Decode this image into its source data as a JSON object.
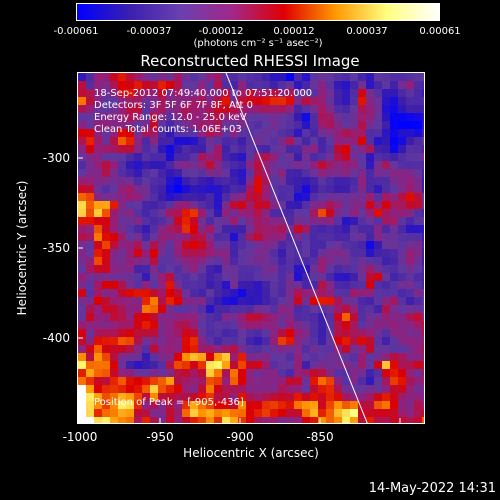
{
  "colorbar": {
    "ticks": [
      "-0.00061",
      "-0.00037",
      "-0.00012",
      "0.00012",
      "0.00037",
      "0.00061"
    ],
    "unit": "(photons cm⁻² s⁻¹ asec⁻²)",
    "colors": [
      "#0000ff",
      "#3a1fb0",
      "#6a40b0",
      "#a2288a",
      "#e00000",
      "#ff9900",
      "#ffff80",
      "#ffffff"
    ]
  },
  "title": "Reconstructed RHESSI Image",
  "annotation": {
    "time_range": "18-Sep-2012 07:49:40.000 to 07:51:20.000",
    "detectors": "Detectors: 3F 5F 6F 7F 8F, Att 0",
    "energy": "Energy Range: 12.0 - 25.0 keV",
    "clean": "Clean     Total counts: 1.06E+03",
    "peak": "Position of Peak = [-905,-436]"
  },
  "axes": {
    "xlabel": "Heliocentric X (arcsec)",
    "ylabel": "Heliocentric Y (arcsec)",
    "xticks": [
      "-1000",
      "-950",
      "-900",
      "-850"
    ],
    "yticks": [
      "-300",
      "-350",
      "-400"
    ]
  },
  "timestamp": "14-May-2022 14:31"
}
